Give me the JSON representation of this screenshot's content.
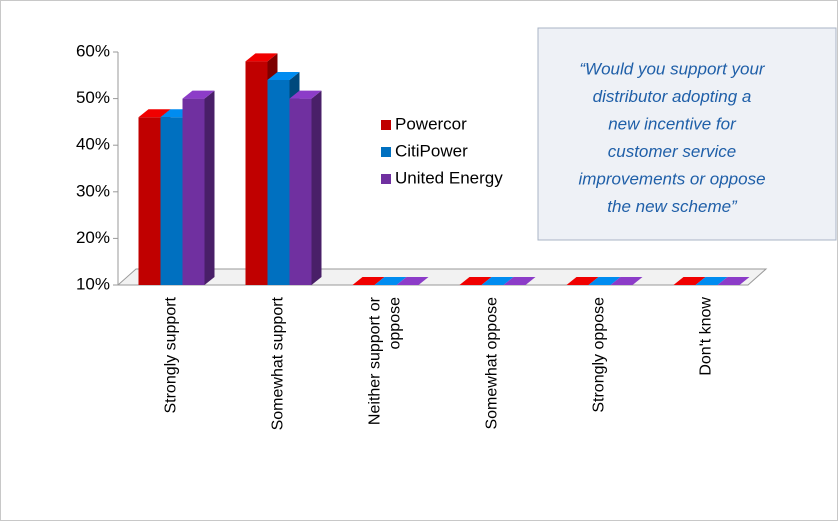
{
  "chart_data": {
    "type": "bar3d",
    "categories": [
      "Strongly support",
      "Somewhat support",
      "Neither support or oppose",
      "Somewhat oppose",
      "Strongly oppose",
      "Don't know"
    ],
    "series": [
      {
        "name": "Powercor",
        "color": "#c00000",
        "values": [
          46,
          58,
          10,
          10,
          10,
          10
        ]
      },
      {
        "name": "CitiPower",
        "color": "#0070c0",
        "values": [
          46,
          54,
          10,
          10,
          10,
          10
        ]
      },
      {
        "name": "United Energy",
        "color": "#7030a0",
        "values": [
          50,
          50,
          10,
          10,
          10,
          10
        ]
      }
    ],
    "ylim": [
      10,
      60
    ],
    "yticks": [
      {
        "value": 10,
        "label": "10%"
      },
      {
        "value": 20,
        "label": "20%"
      },
      {
        "value": 30,
        "label": "30%"
      },
      {
        "value": 40,
        "label": "40%"
      },
      {
        "value": 50,
        "label": "50%"
      },
      {
        "value": 60,
        "label": "60%"
      }
    ],
    "annotation": [
      "“Would you support your",
      "distributor adopting a",
      "new incentive for",
      "customer service",
      "improvements or oppose",
      "the new scheme”"
    ]
  }
}
